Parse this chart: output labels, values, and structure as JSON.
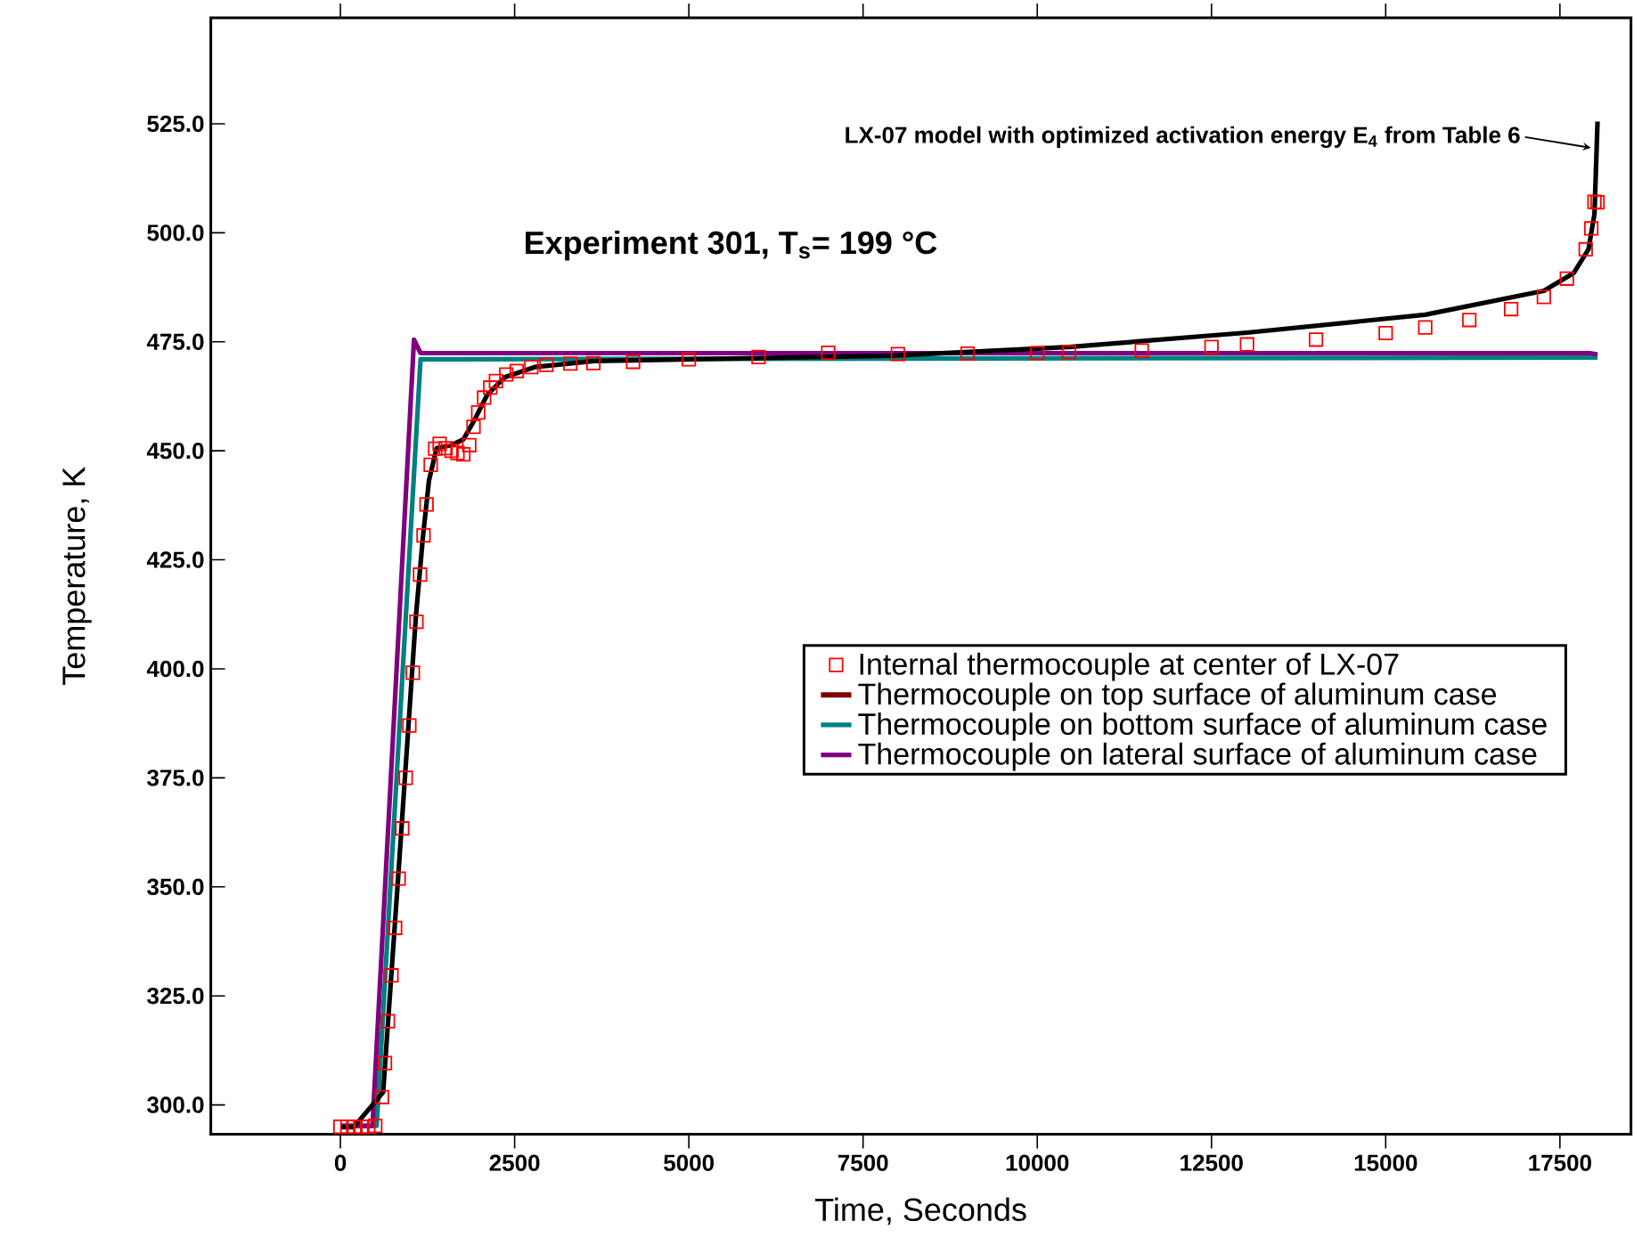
{
  "chart_data": {
    "type": "line",
    "xlabel": "Time, Seconds",
    "ylabel": "Temperature, K",
    "xlim": [
      -1860,
      18520
    ],
    "ylim": [
      293.3,
      549.3
    ],
    "xticks": [
      0,
      2500,
      5000,
      7500,
      10000,
      12500,
      15000,
      17500
    ],
    "yticks": [
      {
        "value": 300,
        "label": "300.0"
      },
      {
        "value": 325,
        "label": "325.0"
      },
      {
        "value": 350,
        "label": "350.0"
      },
      {
        "value": 375,
        "label": "375.0"
      },
      {
        "value": 400,
        "label": "400.0"
      },
      {
        "value": 425,
        "label": "425.0"
      },
      {
        "value": 450,
        "label": "450.0"
      },
      {
        "value": 475,
        "label": "475.0"
      },
      {
        "value": 500,
        "label": "500.0"
      },
      {
        "value": 525,
        "label": "525.0"
      }
    ],
    "legend": "right",
    "line_style": "solid",
    "annotations": [
      "Experiment 301, T$_{s}$= 199 °C",
      {
        "text": "LX-07 model with optimized activation energy E$_{4}$ from Table 6",
        "x": 17945,
        "y": 519.5
      }
    ],
    "series": [
      {
        "name": "Internal thermocouple at center of LX-07",
        "type": "scatter",
        "marker": "square",
        "color": "#ff0000",
        "x": [
          0,
          100,
          200,
          300,
          400,
          500,
          596,
          639,
          682,
          733,
          785,
          836,
          887,
          938,
          989,
          1040,
          1091,
          1142,
          1193,
          1236,
          1296,
          1360,
          1424,
          1510,
          1595,
          1680,
          1764,
          1849,
          1910,
          1977,
          2062,
          2150,
          2232,
          2380,
          2530,
          2740,
          2957,
          3300,
          3630,
          4200,
          5000,
          6000,
          7000,
          8000,
          9000,
          10000,
          10455,
          11500,
          12500,
          13010,
          14000,
          15000,
          15567,
          16200,
          16800,
          17270,
          17600,
          17870,
          17950,
          17996,
          18040
        ],
        "values": [
          295,
          295,
          295,
          295,
          295,
          295.2,
          301.8,
          309.6,
          319.2,
          329.7,
          340.6,
          351.9,
          363.4,
          375,
          387,
          399.1,
          410.8,
          421.6,
          430.6,
          437.7,
          446.8,
          450.5,
          451.6,
          450.6,
          450,
          449.5,
          449.2,
          451.3,
          455.5,
          458.8,
          462.2,
          464.5,
          466,
          467.5,
          468.3,
          469.2,
          469.7,
          470,
          470.1,
          470.4,
          471,
          471.5,
          472.5,
          472.2,
          472.3,
          472.4,
          472.6,
          473,
          473.8,
          474.4,
          475.5,
          477,
          478.3,
          480,
          482.5,
          485.3,
          489.5,
          496.2,
          501,
          507.1,
          507
        ]
      },
      {
        "name": "Thermocouple on top surface of aluminum case",
        "color": "#800000",
        "values": [
          null
        ]
      },
      {
        "name": "Thermocouple on bottom surface of aluminum case",
        "color": "#008080",
        "x": [
          0,
          520,
          1150,
          18040
        ],
        "values": [
          295.2,
          295.2,
          471.0,
          471.4
        ]
      },
      {
        "name": "Thermocouple on lateral surface of aluminum case",
        "color": "#800080",
        "x": [
          0,
          460,
          1056,
          1150,
          17930,
          18040
        ],
        "values": [
          295.2,
          295.2,
          475.5,
          472.4,
          472.4,
          472.1
        ]
      },
      {
        "color": "#000000",
        "x": [
          0,
          191,
          613,
          827,
          1082,
          1185,
          1270,
          1380,
          1595,
          1764,
          1935,
          2105,
          2360,
          2786,
          3638,
          7900,
          10455,
          13010,
          15567,
          17270,
          17700,
          17910,
          17996,
          18040
        ],
        "values": [
          294.9,
          294.9,
          302.9,
          351.9,
          411.8,
          430.4,
          443.1,
          450.6,
          451.3,
          452.6,
          457.4,
          462.8,
          466.9,
          469.2,
          470.6,
          471.8,
          473.8,
          477.1,
          481.2,
          486.7,
          490.8,
          496.2,
          504.3,
          525.5
        ]
      }
    ]
  }
}
